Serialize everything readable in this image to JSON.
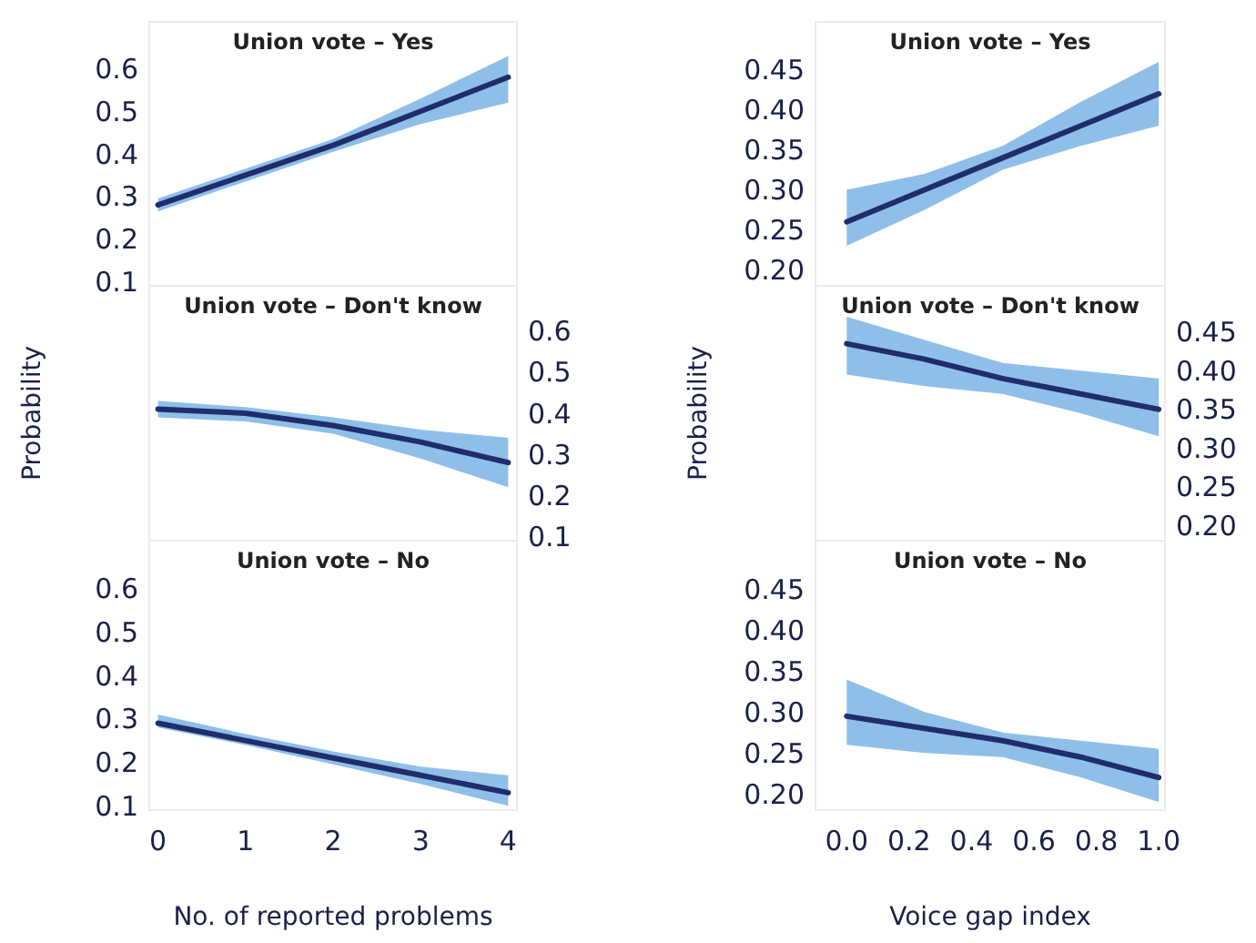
{
  "chart_data": [
    {
      "type": "line",
      "title": "Union vote – Yes",
      "x": [
        0,
        1,
        2,
        3,
        4
      ],
      "xlim": [
        -0.1,
        4.1
      ],
      "ylim": [
        0.09,
        0.71
      ],
      "yticks": [
        0.1,
        0.2,
        0.3,
        0.4,
        0.5,
        0.6
      ],
      "tick_labels": "y",
      "series": [
        {
          "color": "#1f2d6b",
          "values": [
            0.28,
            0.35,
            0.42,
            0.5,
            0.58
          ],
          "lower": [
            0.265,
            0.335,
            0.405,
            0.47,
            0.52
          ],
          "upper": [
            0.295,
            0.365,
            0.435,
            0.53,
            0.63
          ]
        }
      ]
    },
    {
      "type": "line",
      "title": "Union vote – Yes",
      "x": [
        0,
        0.25,
        0.5,
        0.75,
        1
      ],
      "xlim": [
        -0.1,
        1.02
      ],
      "ylim": [
        0.18,
        0.51
      ],
      "yticks": [
        {
          "value": 0.2,
          "label": "0.20"
        },
        0.25,
        {
          "value": 0.3,
          "label": "0.30"
        },
        0.35,
        {
          "value": 0.4,
          "label": "0.40"
        },
        0.45
      ],
      "tick_labels": "y",
      "series": [
        {
          "color": "#1f2d6b",
          "values": [
            0.26,
            0.3,
            0.34,
            0.38,
            0.42
          ],
          "lower": [
            0.23,
            0.275,
            0.325,
            0.355,
            0.38
          ],
          "upper": [
            0.3,
            0.32,
            0.355,
            0.41,
            0.46
          ]
        }
      ]
    },
    {
      "type": "line",
      "title": "Union vote – Don't know",
      "ylabel": "Probability",
      "x": [
        0,
        1,
        2,
        3,
        4
      ],
      "xlim": [
        -0.1,
        4.1
      ],
      "ylim": [
        0.09,
        0.71
      ],
      "yticks": [
        0.1,
        0.2,
        0.3,
        0.4,
        0.5,
        0.6
      ],
      "tick_labels": "y",
      "series": [
        {
          "color": "#1f2d6b",
          "values": [
            0.41,
            0.4,
            0.37,
            0.33,
            0.28
          ],
          "lower": [
            0.39,
            0.38,
            0.35,
            0.29,
            0.22
          ],
          "upper": [
            0.43,
            0.415,
            0.39,
            0.36,
            0.34
          ]
        }
      ]
    },
    {
      "type": "line",
      "title": "Union vote – Don't know",
      "ylabel": "Probability",
      "x": [
        0,
        0.25,
        0.5,
        0.75,
        1
      ],
      "xlim": [
        -0.1,
        1.02
      ],
      "ylim": [
        0.18,
        0.51
      ],
      "yticks": [
        {
          "value": 0.2,
          "label": "0.20"
        },
        0.25,
        {
          "value": 0.3,
          "label": "0.30"
        },
        0.35,
        {
          "value": 0.4,
          "label": "0.40"
        },
        0.45
      ],
      "tick_labels": "y",
      "series": [
        {
          "color": "#1f2d6b",
          "values": [
            0.435,
            0.415,
            0.39,
            0.37,
            0.35
          ],
          "lower": [
            0.395,
            0.38,
            0.37,
            0.345,
            0.315
          ],
          "upper": [
            0.47,
            0.44,
            0.41,
            0.4,
            0.39
          ]
        }
      ]
    },
    {
      "type": "line",
      "title": "Union vote – No",
      "xlabel": "No. of reported problems",
      "x": [
        0,
        1,
        2,
        3,
        4
      ],
      "xlim": [
        -0.1,
        4.1
      ],
      "xticks": [
        0,
        1,
        2,
        3,
        4
      ],
      "ylim": [
        0.09,
        0.71
      ],
      "yticks": [
        0.1,
        0.2,
        0.3,
        0.4,
        0.5,
        0.6
      ],
      "series": [
        {
          "color": "#1f2d6b",
          "values": [
            0.29,
            0.25,
            0.21,
            0.17,
            0.13
          ],
          "lower": [
            0.28,
            0.24,
            0.195,
            0.15,
            0.1
          ],
          "upper": [
            0.31,
            0.265,
            0.225,
            0.19,
            0.17
          ]
        }
      ]
    },
    {
      "type": "line",
      "title": "Union vote – No",
      "xlabel": "Voice gap index",
      "x": [
        0,
        0.25,
        0.5,
        0.75,
        1
      ],
      "xlim": [
        -0.1,
        1.02
      ],
      "xticks": [
        {
          "value": 0,
          "label": "0.0"
        },
        0.2,
        0.4,
        0.6,
        0.8,
        {
          "value": 1,
          "label": "1.0"
        }
      ],
      "ylim": [
        0.18,
        0.51
      ],
      "yticks": [
        {
          "value": 0.2,
          "label": "0.20"
        },
        0.25,
        {
          "value": 0.3,
          "label": "0.30"
        },
        0.35,
        {
          "value": 0.4,
          "label": "0.40"
        },
        0.45
      ],
      "series": [
        {
          "color": "#1f2d6b",
          "values": [
            0.295,
            0.28,
            0.265,
            0.245,
            0.22
          ],
          "lower": [
            0.26,
            0.25,
            0.245,
            0.22,
            0.19
          ],
          "upper": [
            0.34,
            0.3,
            0.275,
            0.265,
            0.255
          ]
        }
      ]
    }
  ]
}
